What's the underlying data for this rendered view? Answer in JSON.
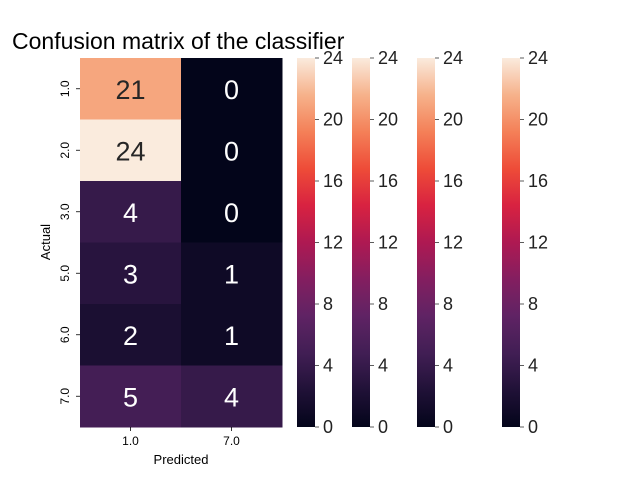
{
  "chart_data": {
    "type": "heatmap",
    "title": "Confusion matrix of the classifier",
    "xlabel": "Predicted",
    "ylabel": "Actual",
    "x_categories": [
      "1.0",
      "7.0"
    ],
    "y_categories": [
      "1.0",
      "2.0",
      "3.0",
      "5.0",
      "6.0",
      "7.0"
    ],
    "values": [
      [
        21,
        0
      ],
      [
        24,
        0
      ],
      [
        4,
        0
      ],
      [
        3,
        1
      ],
      [
        2,
        1
      ],
      [
        5,
        4
      ]
    ],
    "color_range": [
      0,
      24
    ],
    "colormap": "rocket",
    "colorbars": [
      {
        "ticks": [
          "0",
          "4",
          "8",
          "12",
          "16",
          "20",
          "24"
        ]
      },
      {
        "ticks": [
          "0",
          "4",
          "8",
          "12",
          "16",
          "20",
          "24"
        ]
      },
      {
        "ticks": [
          "0",
          "4",
          "8",
          "12",
          "16",
          "20",
          "24"
        ]
      },
      {
        "ticks": [
          "0",
          "4",
          "8",
          "12",
          "16",
          "20",
          "24"
        ]
      }
    ]
  }
}
